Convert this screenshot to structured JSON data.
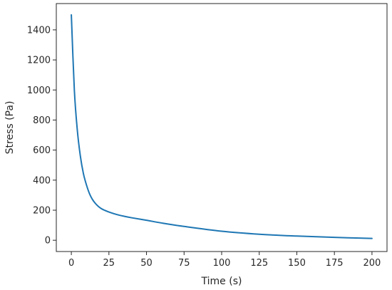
{
  "chart_data": {
    "type": "line",
    "xlabel": "Time (s)",
    "ylabel": "Stress (Pa)",
    "xlim": [
      -10,
      210
    ],
    "ylim": [
      -75,
      1575
    ],
    "xticks": [
      0,
      25,
      50,
      75,
      100,
      125,
      150,
      175,
      200
    ],
    "yticks": [
      0,
      200,
      400,
      600,
      800,
      1000,
      1200,
      1400
    ],
    "grid": false,
    "series": [
      {
        "color": "#1f77b4",
        "x": [
          0,
          2,
          4,
          6,
          8,
          10,
          12,
          14,
          16,
          18,
          20,
          22,
          25,
          30,
          35,
          40,
          50,
          60,
          75,
          100,
          125,
          150,
          175,
          200
        ],
        "y": [
          1500,
          1000,
          730,
          560,
          445,
          370,
          312,
          272,
          245,
          225,
          210,
          200,
          188,
          172,
          160,
          150,
          133,
          115,
          92,
          60,
          40,
          28,
          19,
          12
        ]
      }
    ]
  }
}
